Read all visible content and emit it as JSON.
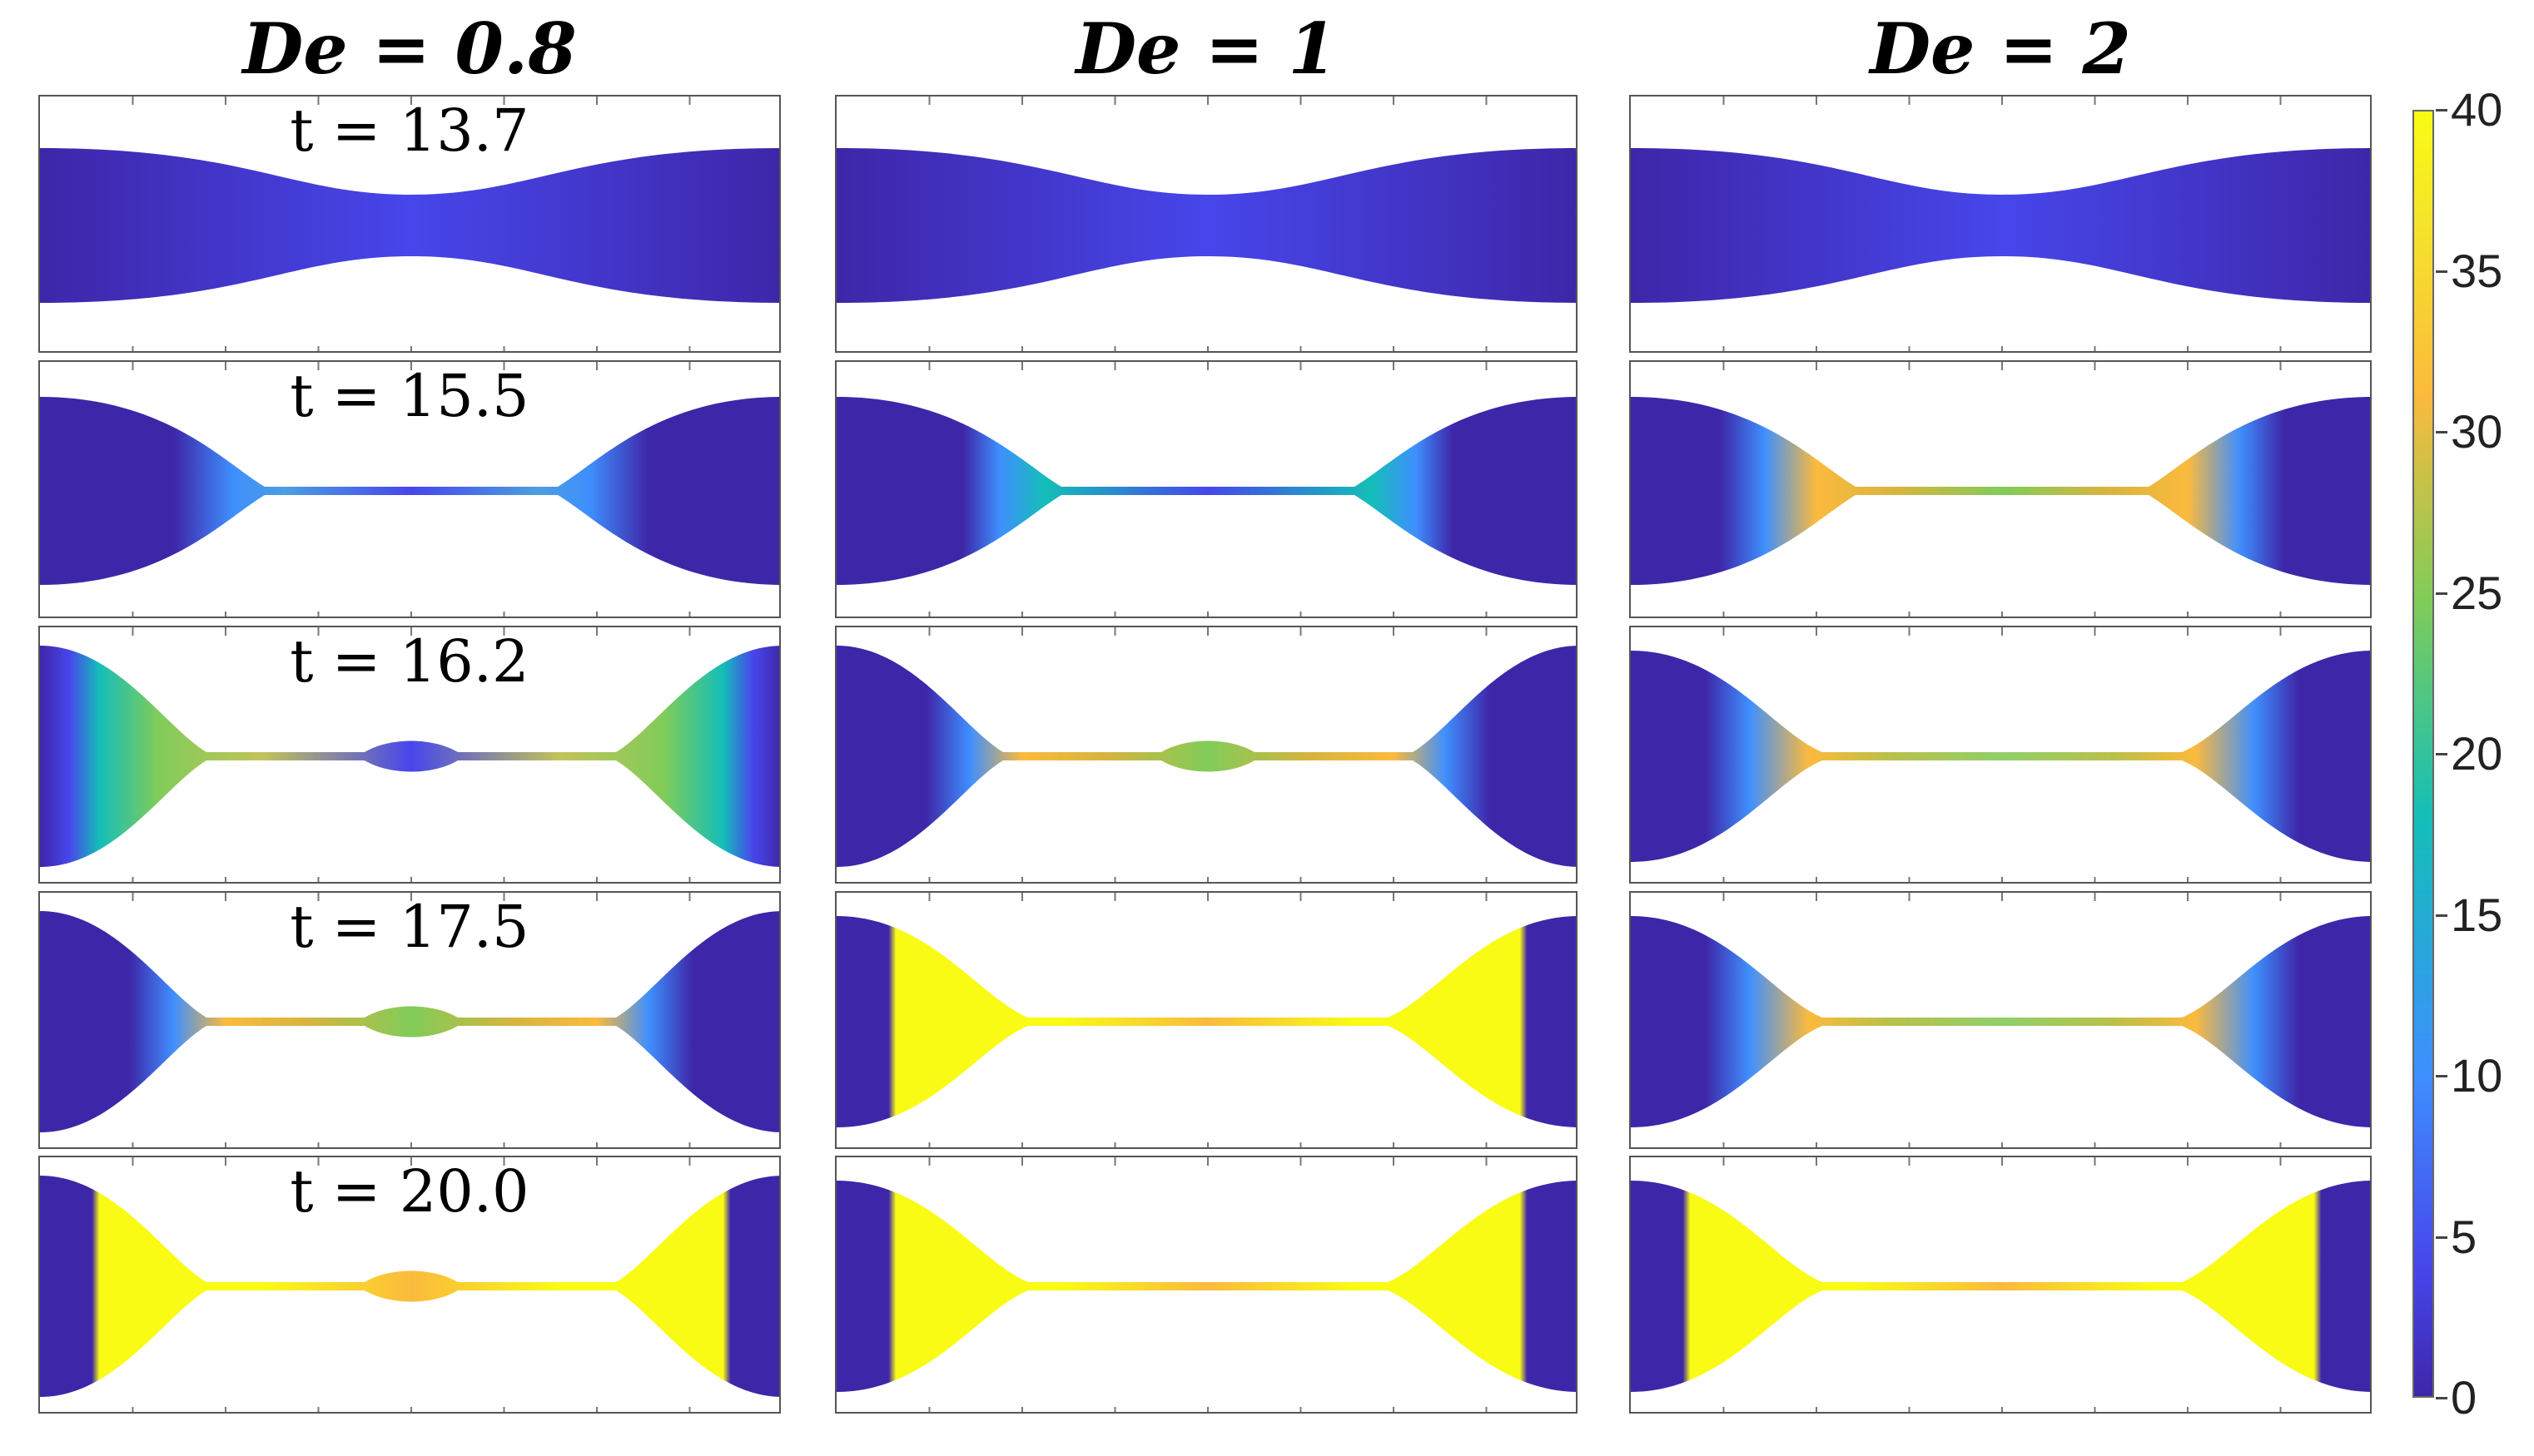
{
  "columns": [
    {
      "title": "De = 0.8"
    },
    {
      "title": "De = 1"
    },
    {
      "title": "De = 2"
    }
  ],
  "rows": [
    {
      "time_label": "t = 13.7"
    },
    {
      "time_label": "t = 15.5"
    },
    {
      "time_label": "t = 16.2"
    },
    {
      "time_label": "t = 17.5"
    },
    {
      "time_label": "t = 20.0"
    }
  ],
  "colorbar": {
    "min": 0,
    "max": 40,
    "ticks": [
      "0",
      "5",
      "10",
      "15",
      "20",
      "25",
      "30",
      "35",
      "40"
    ],
    "colormap": "parula",
    "colors": {
      "low": "#3e26a8",
      "blue": "#4746eb",
      "light_blue": "#3f8ffe",
      "teal": "#14beb8",
      "green": "#81cc59",
      "orange": "#fbba3d",
      "yellow": "#f9fb15"
    }
  },
  "panels": [
    [
      {
        "shape": "neck",
        "colors": "uniform"
      },
      {
        "shape": "thin",
        "colors": "blue-tinted"
      },
      {
        "shape": "bead",
        "colors": "green-ends"
      },
      {
        "shape": "bead",
        "colors": "orange-ends"
      },
      {
        "shape": "bead",
        "colors": "yellow-ends"
      }
    ],
    [
      {
        "shape": "neck",
        "colors": "uniform"
      },
      {
        "shape": "thin",
        "colors": "teal-ends"
      },
      {
        "shape": "bead",
        "colors": "orange-ends"
      },
      {
        "shape": "thread",
        "colors": "yellow-ends"
      },
      {
        "shape": "thread",
        "colors": "yellow-ends"
      }
    ],
    [
      {
        "shape": "neck",
        "colors": "uniform"
      },
      {
        "shape": "thin",
        "colors": "orange-ends"
      },
      {
        "shape": "thread",
        "colors": "blue-orange"
      },
      {
        "shape": "thread",
        "colors": "blue-orange"
      },
      {
        "shape": "thread",
        "colors": "yellow-ends"
      }
    ]
  ]
}
